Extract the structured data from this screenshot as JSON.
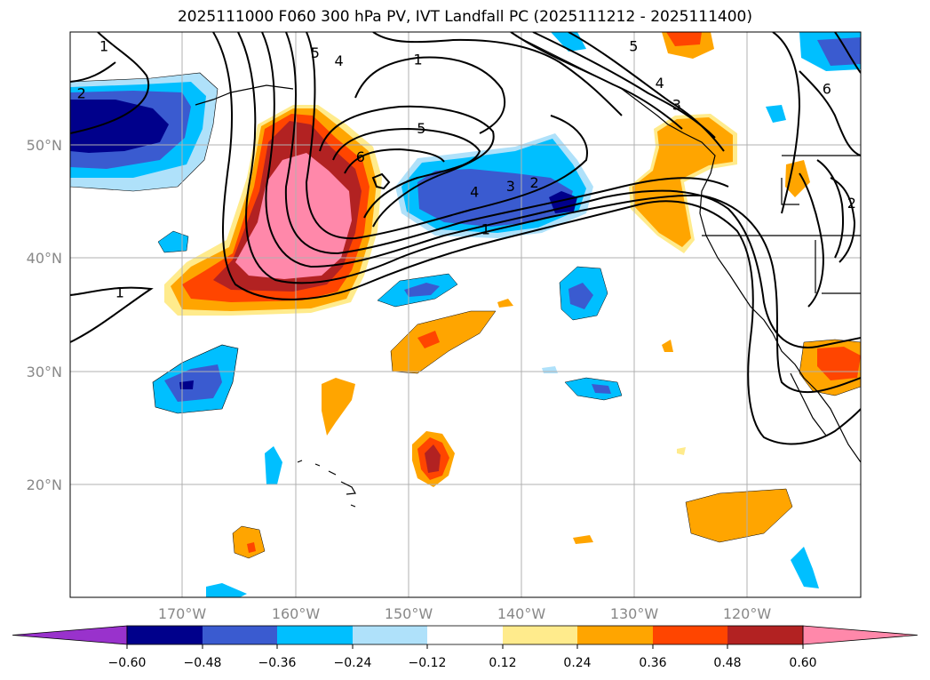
{
  "title": "2025111000 F060 300 hPa PV, IVT Landfall PC (2025111212 - 2025111400)",
  "map": {
    "projection": "PlateCarree",
    "lon_range": [
      -180,
      -110
    ],
    "lat_range": [
      10,
      60
    ],
    "x_ticks": [
      {
        "lon": -170,
        "label": "170°W"
      },
      {
        "lon": -160,
        "label": "160°W"
      },
      {
        "lon": -150,
        "label": "150°W"
      },
      {
        "lon": -140,
        "label": "140°W"
      },
      {
        "lon": -130,
        "label": "130°W"
      },
      {
        "lon": -120,
        "label": "120°W"
      }
    ],
    "y_ticks": [
      {
        "lat": 20,
        "label": "20°N"
      },
      {
        "lat": 30,
        "label": "30°N"
      },
      {
        "lat": 40,
        "label": "40°N"
      },
      {
        "lat": 50,
        "label": "50°N"
      }
    ],
    "contour_labels": [
      {
        "text": "1",
        "lon": -177.0,
        "lat": 58.8
      },
      {
        "text": "2",
        "lon": -179.0,
        "lat": 54.6
      },
      {
        "text": "1",
        "lon": -175.6,
        "lat": 37.0
      },
      {
        "text": "5",
        "lon": -158.3,
        "lat": 58.2
      },
      {
        "text": "4",
        "lon": -156.2,
        "lat": 57.5
      },
      {
        "text": "1",
        "lon": -149.2,
        "lat": 57.6
      },
      {
        "text": "5",
        "lon": -148.9,
        "lat": 51.5
      },
      {
        "text": "6",
        "lon": -154.3,
        "lat": 49.0
      },
      {
        "text": "4",
        "lon": -144.2,
        "lat": 45.9
      },
      {
        "text": "3",
        "lon": -141.0,
        "lat": 46.4
      },
      {
        "text": "2",
        "lon": -138.9,
        "lat": 46.7
      },
      {
        "text": "1",
        "lon": -143.2,
        "lat": 42.6
      },
      {
        "text": "5",
        "lon": -130.1,
        "lat": 58.8
      },
      {
        "text": "4",
        "lon": -127.8,
        "lat": 55.5
      },
      {
        "text": "3",
        "lon": -126.3,
        "lat": 53.6
      },
      {
        "text": "6",
        "lon": -113.0,
        "lat": 55.0
      },
      {
        "text": "2",
        "lon": -110.8,
        "lat": 44.9
      }
    ]
  },
  "colorbar": {
    "colors": [
      "#9932cc",
      "#00008b",
      "#3a5bd0",
      "#00bfff",
      "#afe1fa",
      "#ffffff",
      "#ffeb8c",
      "#ffa500",
      "#ff4500",
      "#b22222",
      "#ff88aa"
    ],
    "ticks": [
      "−0.60",
      "−0.48",
      "−0.36",
      "−0.24",
      "−0.12",
      "0.12",
      "0.24",
      "0.36",
      "0.48",
      "0.60"
    ]
  },
  "legend_levels": {
    "pv_anomaly_levels": [
      -0.6,
      -0.48,
      -0.36,
      -0.24,
      -0.12,
      0.12,
      0.24,
      0.36,
      0.48,
      0.6
    ],
    "ivt_pc_contours": [
      1,
      2,
      3,
      4,
      5,
      6
    ]
  }
}
